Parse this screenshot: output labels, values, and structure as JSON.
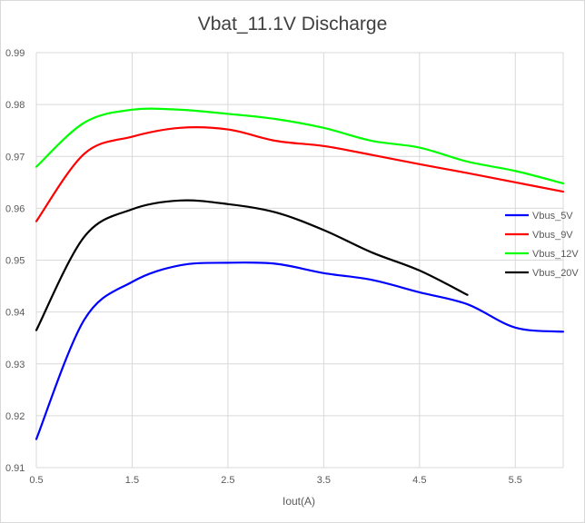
{
  "chart_data": {
    "type": "line",
    "title": "Vbat_11.1V Discharge",
    "xlabel": "Iout(A)",
    "ylabel": "",
    "xlim": [
      0.5,
      6
    ],
    "ylim": [
      0.91,
      0.99
    ],
    "x_ticks": [
      "0.5",
      "1.5",
      "2.5",
      "3.5",
      "4.5",
      "5.5"
    ],
    "x_tick_values": [
      0.5,
      1.5,
      2.5,
      3.5,
      4.5,
      5.5
    ],
    "y_ticks": [
      "0.91",
      "0.92",
      "0.93",
      "0.94",
      "0.95",
      "0.96",
      "0.97",
      "0.98",
      "0.99"
    ],
    "y_tick_values": [
      0.91,
      0.92,
      0.93,
      0.94,
      0.95,
      0.96,
      0.97,
      0.98,
      0.99
    ],
    "grid": true,
    "legend_position": "right",
    "series": [
      {
        "name": "Vbus_5V",
        "color": "#0000ff",
        "x": [
          0.5,
          1.0,
          1.5,
          2.0,
          2.5,
          3.0,
          3.5,
          4.0,
          4.5,
          5.0,
          5.5,
          6.0
        ],
        "y": [
          0.9155,
          0.9385,
          0.9458,
          0.949,
          0.9495,
          0.9493,
          0.9475,
          0.9462,
          0.9438,
          0.9415,
          0.937,
          0.9362
        ]
      },
      {
        "name": "Vbus_9V",
        "color": "#ff0000",
        "x": [
          0.5,
          1.0,
          1.5,
          2.0,
          2.5,
          3.0,
          3.5,
          4.0,
          4.5,
          5.0,
          5.5,
          6.0
        ],
        "y": [
          0.9575,
          0.9705,
          0.9738,
          0.9755,
          0.9752,
          0.973,
          0.972,
          0.9703,
          0.9685,
          0.9668,
          0.965,
          0.9632
        ]
      },
      {
        "name": "Vbus_12V",
        "color": "#00ff00",
        "x": [
          0.5,
          1.0,
          1.5,
          2.0,
          2.5,
          3.0,
          3.5,
          4.0,
          4.5,
          5.0,
          5.5,
          6.0
        ],
        "y": [
          0.968,
          0.9765,
          0.979,
          0.979,
          0.9782,
          0.9772,
          0.9755,
          0.973,
          0.9717,
          0.969,
          0.9672,
          0.9648
        ]
      },
      {
        "name": "Vbus_20V",
        "color": "#000000",
        "x": [
          0.5,
          1.0,
          1.5,
          2.0,
          2.5,
          3.0,
          3.5,
          4.0,
          4.5,
          5.0
        ],
        "y": [
          0.9365,
          0.9545,
          0.9598,
          0.9615,
          0.9608,
          0.9592,
          0.9558,
          0.9515,
          0.948,
          0.9433
        ]
      }
    ]
  }
}
